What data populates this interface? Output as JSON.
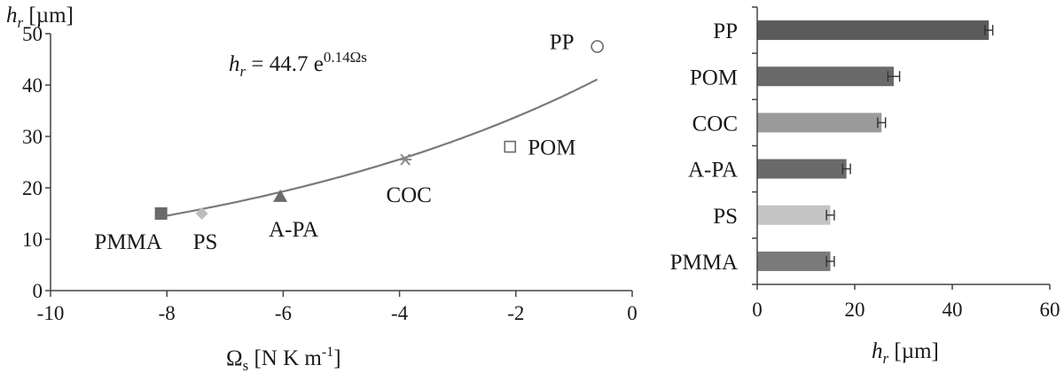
{
  "chart_data": [
    {
      "type": "scatter",
      "title": "",
      "xlabel_main": "Ω",
      "xlabel_sub": "s",
      "xlabel_rest": "  [N K m",
      "xlabel_sup": "-1",
      "xlabel_close": "]",
      "ylabel_main": "h",
      "ylabel_sub": "r",
      "ylabel_rest": " [µm]",
      "xlim": [
        -10,
        0
      ],
      "ylim": [
        0,
        50
      ],
      "xticks": [
        "-10",
        "-8",
        "-6",
        "-4",
        "-2",
        "0"
      ],
      "yticks": [
        "0",
        "10",
        "20",
        "30",
        "40",
        "50"
      ],
      "grid": false,
      "equation": {
        "lhs_main": "h",
        "lhs_sub": "r",
        "rhs": " = 44.7 e",
        "exponent": "0.14Ωs"
      },
      "fit": {
        "a": 44.7,
        "b": 0.14,
        "x_from": -8.1,
        "x_to": -0.6,
        "color": "#7a7a7a"
      },
      "points": [
        {
          "label": "PMMA",
          "x": -8.1,
          "y": 15.0,
          "marker": "square-filled",
          "color": "#6a6a6a"
        },
        {
          "label": "PS",
          "x": -7.4,
          "y": 15.0,
          "marker": "diamond-filled",
          "color": "#bdbdbd"
        },
        {
          "label": "A-PA",
          "x": -6.05,
          "y": 18.3,
          "marker": "triangle-filled",
          "color": "#6a6a6a"
        },
        {
          "label": "COC",
          "x": -3.9,
          "y": 25.5,
          "marker": "asterisk",
          "color": "#8a8a8a"
        },
        {
          "label": "POM",
          "x": -2.1,
          "y": 28.0,
          "marker": "square-open",
          "color": "#6a6a6a"
        },
        {
          "label": "PP",
          "x": -0.6,
          "y": 47.5,
          "marker": "circle-open",
          "color": "#6a6a6a"
        }
      ]
    },
    {
      "type": "bar",
      "orientation": "horizontal",
      "xlabel_main": "h",
      "xlabel_sub": "r",
      "xlabel_rest": " [µm]",
      "xlim": [
        0,
        60
      ],
      "xticks": [
        "0",
        "20",
        "40",
        "60"
      ],
      "grid": false,
      "categories": [
        "PP",
        "POM",
        "COC",
        "A-PA",
        "PS",
        "PMMA"
      ],
      "values": [
        47.5,
        28.0,
        25.5,
        18.3,
        15.0,
        15.0
      ],
      "errors": [
        0.8,
        1.2,
        0.8,
        0.8,
        0.8,
        0.8
      ],
      "colors": [
        "#5b5b5b",
        "#6a6a6a",
        "#9a9a9a",
        "#6a6a6a",
        "#c4c4c4",
        "#7a7a7a"
      ]
    }
  ]
}
